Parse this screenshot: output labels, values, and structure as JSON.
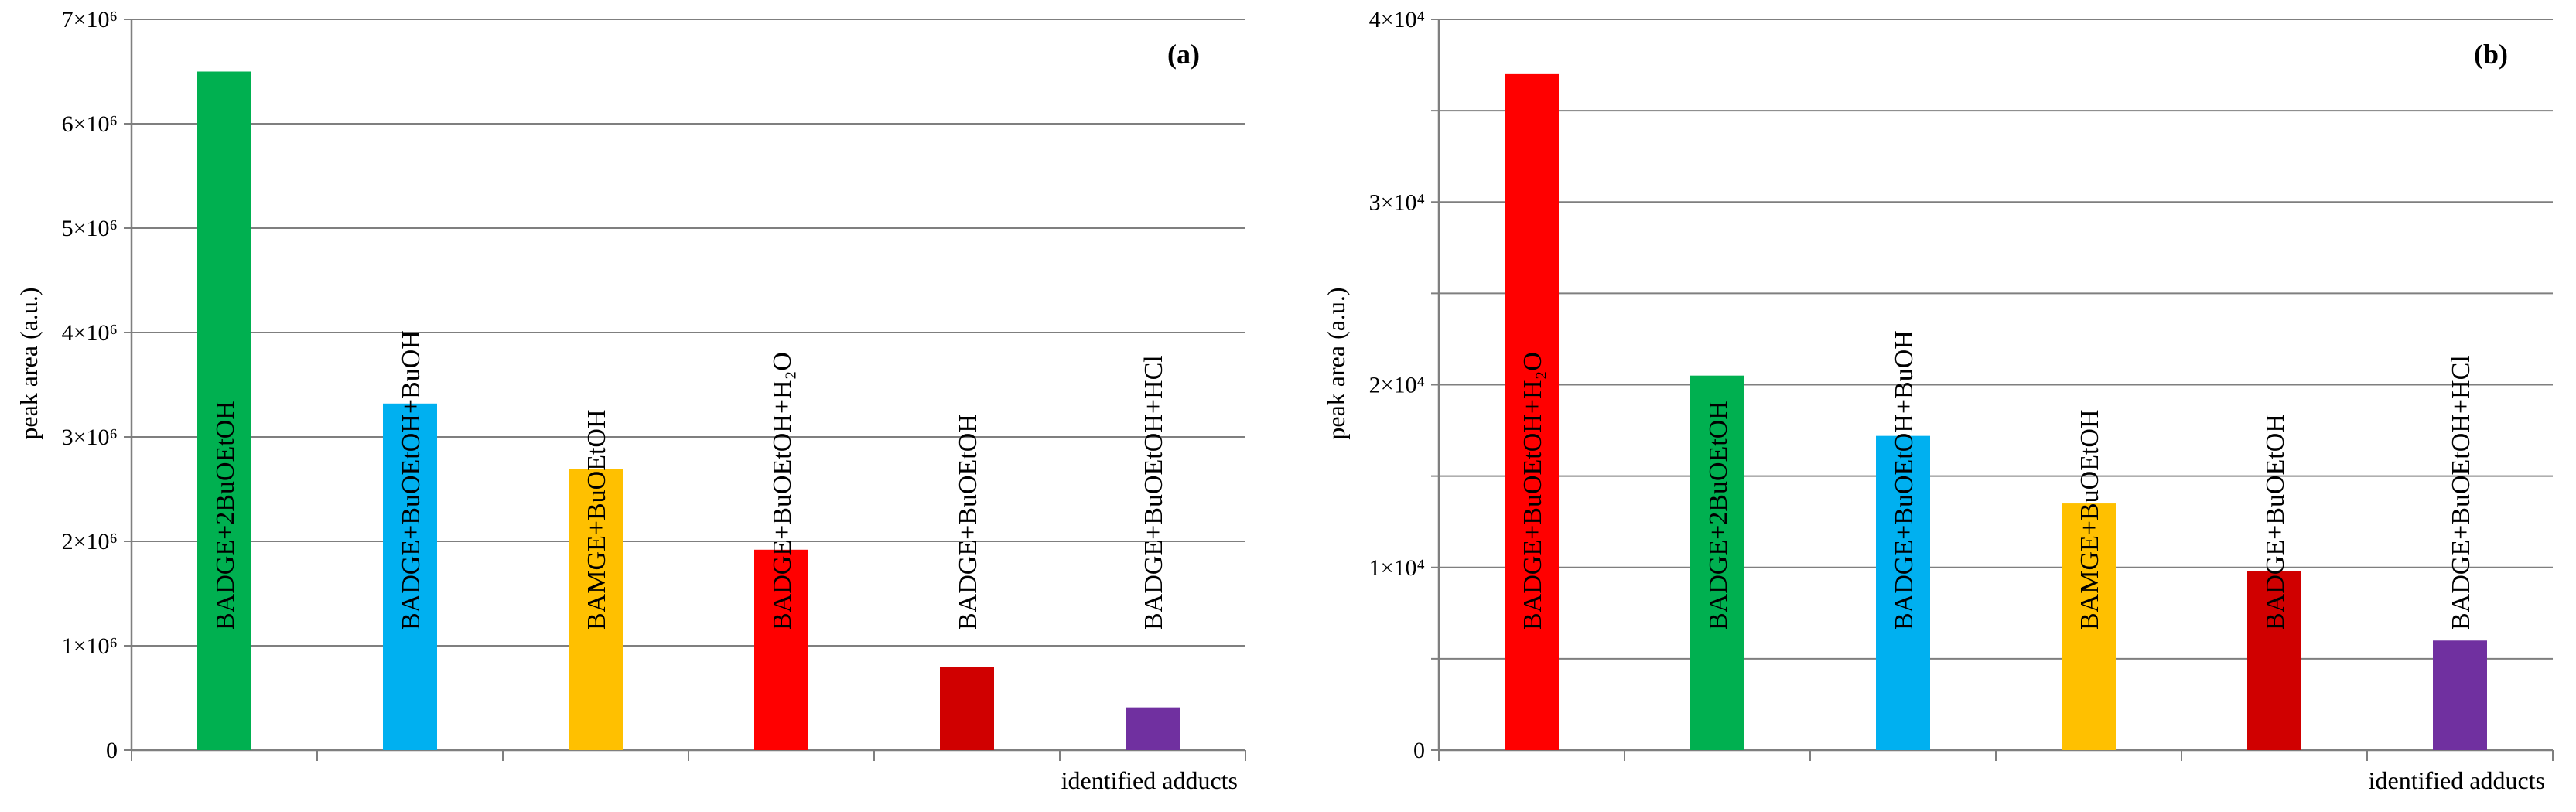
{
  "chart_data": [
    {
      "type": "bar",
      "panel_label": "(a)",
      "ylabel": "peak area (a.u.)",
      "xlabel": "identified adducts",
      "ylim": [
        0,
        7000000
      ],
      "y_ticks": [
        "0",
        "1×10⁶",
        "2×10⁶",
        "3×10⁶",
        "4×10⁶",
        "5×10⁶",
        "6×10⁶",
        "7×10⁶"
      ],
      "grid": true,
      "categories": [
        "BADGE+2BuOEtOH",
        "BADGE+BuOEtOH+BuOH",
        "BAMGE+BuOEtOH",
        "BADGE+BuOEtOH+H₂O",
        "BADGE+BuOEtOH",
        "BADGE+BuOEtOH+HCl"
      ],
      "values": [
        6500000,
        3320000,
        2690000,
        1920000,
        800000,
        410000
      ],
      "colors": [
        "#00b050",
        "#00b0f0",
        "#ffc000",
        "#ff0000",
        "#d00000",
        "#7030a0"
      ]
    },
    {
      "type": "bar",
      "panel_label": "(b)",
      "ylabel": "peak area (a.u.)",
      "xlabel": "identified adducts",
      "ylim": [
        0,
        40000
      ],
      "y_ticks": [
        "0",
        "",
        "1×10⁴",
        "",
        "2×10⁴",
        "",
        "3×10⁴",
        "",
        "4×10⁴"
      ],
      "grid": true,
      "categories": [
        "BADGE+BuOEtOH+H₂O",
        "BADGE+2BuOEtOH",
        "BADGE+BuOEtOH+BuOH",
        "BAMGE+BuOEtOH",
        "BADGE+BuOEtOH",
        "BADGE+BuOEtOH+HCl"
      ],
      "values": [
        37000,
        20500,
        17200,
        13500,
        9800,
        6000
      ],
      "colors": [
        "#ff0000",
        "#00b050",
        "#00b0f0",
        "#ffc000",
        "#d00000",
        "#7030a0"
      ]
    }
  ]
}
